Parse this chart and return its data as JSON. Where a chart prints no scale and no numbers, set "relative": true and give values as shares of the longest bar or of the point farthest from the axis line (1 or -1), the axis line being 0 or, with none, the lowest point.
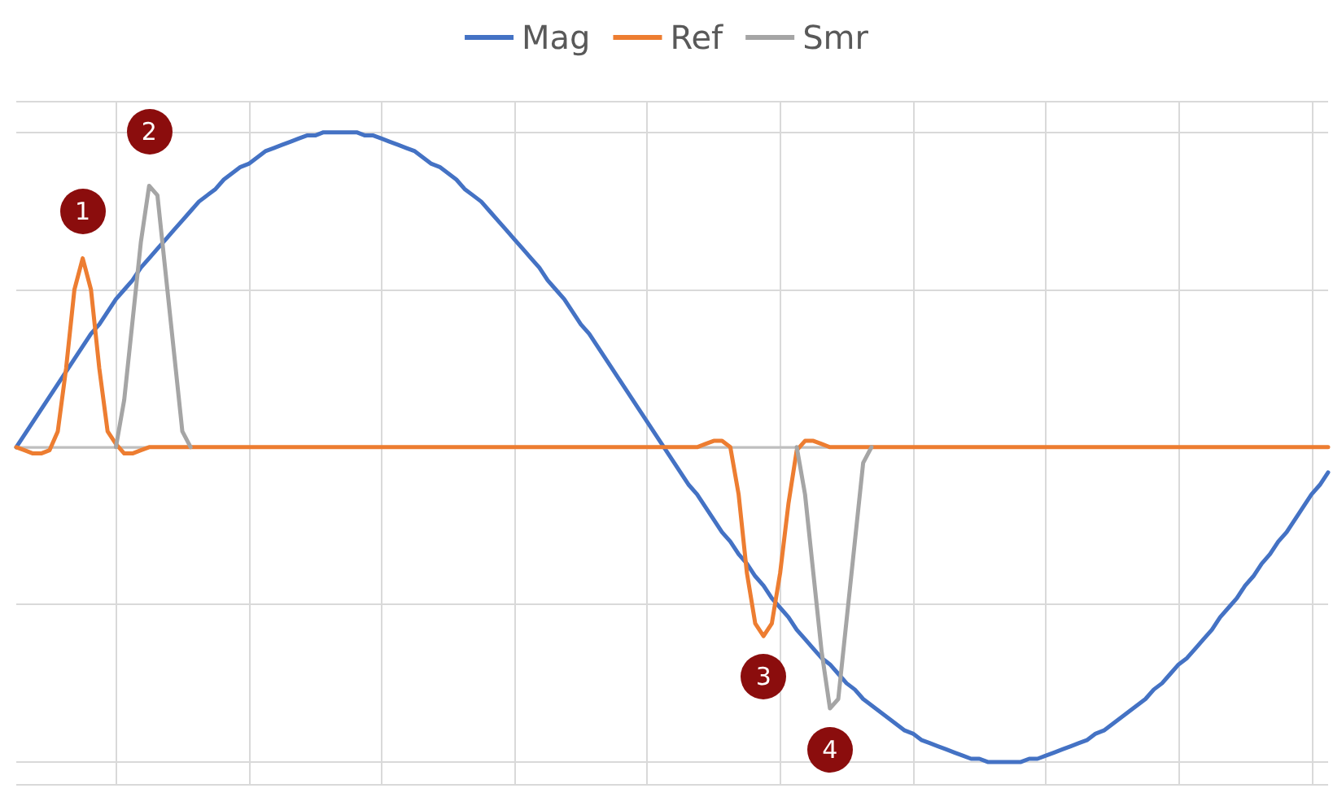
{
  "chart_data": {
    "type": "line",
    "relative": true,
    "grid": true,
    "legend": "top",
    "marker": "none",
    "line_style": "solid",
    "categories": [
      null,
      null,
      null,
      null,
      null,
      null,
      null,
      null,
      null,
      null,
      null,
      null,
      null,
      null,
      null,
      null,
      null,
      null,
      null,
      null,
      null,
      null,
      null,
      null,
      null,
      null,
      null,
      null,
      null,
      null,
      null,
      null,
      null,
      null,
      null,
      null,
      null,
      null,
      null,
      null,
      null,
      null,
      null,
      null,
      null,
      null,
      null,
      null,
      null,
      null,
      null,
      null,
      null,
      null,
      null,
      null,
      null,
      null,
      null,
      null,
      null,
      null,
      null,
      null,
      null,
      null,
      null,
      null,
      null,
      null,
      null,
      null,
      null,
      null,
      null,
      null,
      null,
      null,
      null,
      null,
      null,
      null,
      null,
      null,
      null,
      null,
      null,
      null,
      null,
      null,
      null,
      null,
      null,
      null,
      null,
      null,
      null,
      null,
      null,
      null,
      null,
      null,
      null,
      null,
      null,
      null,
      null,
      null,
      null,
      null,
      null,
      null,
      null,
      null,
      null,
      null,
      null,
      null,
      null,
      null,
      null,
      null,
      null,
      null,
      null,
      null,
      null,
      null,
      null,
      null,
      null,
      null,
      null,
      null,
      null,
      null,
      null,
      null,
      null,
      null,
      null,
      null,
      null,
      null,
      null,
      null,
      null,
      null,
      null,
      null,
      null,
      null,
      null,
      null,
      null,
      null,
      null,
      null,
      null
    ],
    "series": [
      {
        "name": "Mag",
        "color": "#4472c4",
        "values": [
          0,
          0.04,
          0.08,
          0.12,
          0.16,
          0.2,
          0.24,
          0.28,
          0.32,
          0.36,
          0.39,
          0.43,
          0.47,
          0.5,
          0.53,
          0.57,
          0.6,
          0.63,
          0.66,
          0.69,
          0.72,
          0.75,
          0.78,
          0.8,
          0.82,
          0.85,
          0.87,
          0.89,
          0.9,
          0.92,
          0.94,
          0.95,
          0.96,
          0.97,
          0.98,
          0.99,
          0.99,
          1,
          1,
          1,
          1,
          1,
          0.99,
          0.99,
          0.98,
          0.97,
          0.96,
          0.95,
          0.94,
          0.92,
          0.9,
          0.89,
          0.87,
          0.85,
          0.82,
          0.8,
          0.78,
          0.75,
          0.72,
          0.69,
          0.66,
          0.63,
          0.6,
          0.57,
          0.53,
          0.5,
          0.47,
          0.43,
          0.39,
          0.36,
          0.32,
          0.28,
          0.24,
          0.2,
          0.16,
          0.12,
          0.08,
          0.04,
          0,
          -0.04,
          -0.08,
          -0.12,
          -0.15,
          -0.19,
          -0.23,
          -0.27,
          -0.3,
          -0.34,
          -0.37,
          -0.41,
          -0.44,
          -0.48,
          -0.51,
          -0.54,
          -0.58,
          -0.61,
          -0.64,
          -0.67,
          -0.69,
          -0.72,
          -0.75,
          -0.77,
          -0.8,
          -0.82,
          -0.84,
          -0.86,
          -0.88,
          -0.9,
          -0.91,
          -0.93,
          -0.94,
          -0.95,
          -0.96,
          -0.97,
          -0.98,
          -0.99,
          -0.99,
          -1,
          -1,
          -1,
          -1,
          -1,
          -0.99,
          -0.99,
          -0.98,
          -0.97,
          -0.96,
          -0.95,
          -0.94,
          -0.93,
          -0.91,
          -0.9,
          -0.88,
          -0.86,
          -0.84,
          -0.82,
          -0.8,
          -0.77,
          -0.75,
          -0.72,
          -0.69,
          -0.67,
          -0.64,
          -0.61,
          -0.58,
          -0.54,
          -0.51,
          -0.48,
          -0.44,
          -0.41,
          -0.37,
          -0.34,
          -0.3,
          -0.27,
          -0.23,
          -0.19,
          -0.15,
          -0.12,
          -0.08
        ]
      },
      {
        "name": "Ref",
        "color": "#ed7d31",
        "values": [
          0,
          -0.01,
          -0.02,
          -0.02,
          -0.01,
          0.05,
          0.25,
          0.5,
          0.6,
          0.5,
          0.25,
          0.05,
          0.01,
          -0.02,
          -0.02,
          -0.01,
          0,
          0,
          0,
          0,
          0,
          0,
          0,
          0,
          0,
          0,
          0,
          0,
          0,
          0,
          0,
          0,
          0,
          0,
          0,
          0,
          0,
          0,
          0,
          0,
          0,
          0,
          0,
          0,
          0,
          0,
          0,
          0,
          0,
          0,
          0,
          0,
          0,
          0,
          0,
          0,
          0,
          0,
          0,
          0,
          0,
          0,
          0,
          0,
          0,
          0,
          0,
          0,
          0,
          0,
          0,
          0,
          0,
          0,
          0,
          0,
          0,
          0,
          0,
          0,
          0,
          0,
          0,
          0.01,
          0.02,
          0.02,
          0,
          -0.15,
          -0.4,
          -0.56,
          -0.6,
          -0.56,
          -0.4,
          -0.18,
          -0.01,
          0.02,
          0.02,
          0.01,
          0,
          0,
          0,
          0,
          0,
          0,
          0,
          0,
          0,
          0,
          0,
          0,
          0,
          0,
          0,
          0,
          0,
          0,
          0,
          0,
          0,
          0,
          0,
          0,
          0,
          0,
          0,
          0,
          0,
          0,
          0,
          0,
          0,
          0,
          0,
          0,
          0,
          0,
          0,
          0,
          0,
          0,
          0,
          0,
          0,
          0,
          0,
          0,
          0,
          0,
          0,
          0,
          0,
          0,
          0,
          0,
          0,
          0,
          0,
          0,
          0
        ]
      },
      {
        "name": "Smr",
        "color": "#a5a5a5",
        "values": [
          null,
          null,
          null,
          null,
          null,
          null,
          null,
          null,
          null,
          null,
          null,
          null,
          0,
          0.15,
          0.4,
          0.65,
          0.83,
          0.8,
          0.55,
          0.3,
          0.05,
          0,
          null,
          null,
          null,
          null,
          null,
          null,
          null,
          null,
          null,
          null,
          null,
          null,
          null,
          null,
          null,
          null,
          null,
          null,
          null,
          null,
          null,
          null,
          null,
          null,
          null,
          null,
          null,
          null,
          null,
          null,
          null,
          null,
          null,
          null,
          null,
          null,
          null,
          null,
          null,
          null,
          null,
          null,
          null,
          null,
          null,
          null,
          null,
          null,
          null,
          null,
          null,
          null,
          null,
          null,
          null,
          null,
          null,
          null,
          null,
          null,
          null,
          null,
          null,
          null,
          null,
          null,
          null,
          null,
          null,
          null,
          null,
          null,
          0,
          -0.15,
          -0.4,
          -0.65,
          -0.83,
          -0.8,
          -0.55,
          -0.3,
          -0.05,
          0,
          null,
          null,
          null,
          null,
          null,
          null,
          null,
          null,
          null,
          null,
          null,
          null,
          null,
          null,
          null,
          null,
          null,
          null,
          null,
          null,
          null,
          null,
          null,
          null,
          null,
          null,
          null,
          null,
          null,
          null,
          null,
          null,
          null,
          null,
          null,
          null,
          null,
          null,
          null,
          null,
          null,
          null,
          null,
          null,
          null,
          null,
          null,
          null,
          null,
          null,
          null,
          null,
          null,
          null,
          null
        ]
      }
    ],
    "annotations": [
      {
        "text": "1",
        "y": 0.75
      },
      {
        "text": "2",
        "y": 1.0
      },
      {
        "text": "3",
        "y": -0.73
      },
      {
        "text": "4",
        "y": -0.96
      }
    ]
  }
}
